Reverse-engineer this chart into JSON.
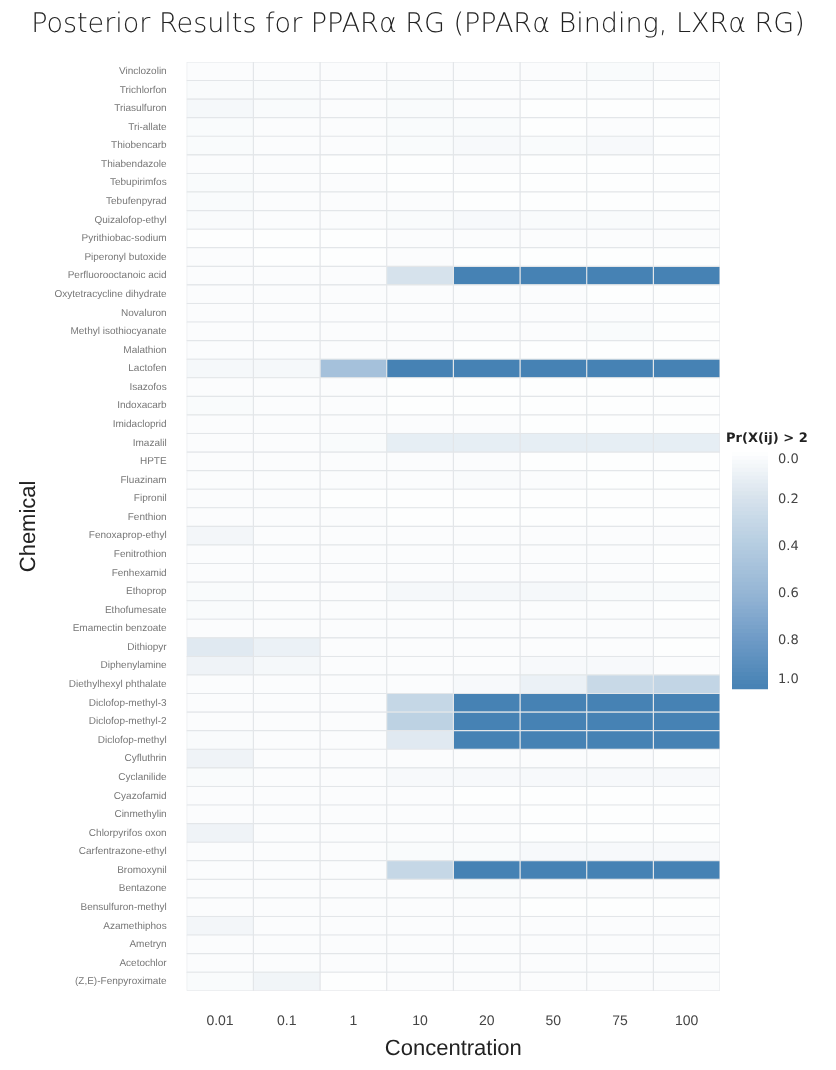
{
  "chart_data": {
    "type": "heatmap",
    "title": "Posterior Results for PPARα RG (PPARα Binding, LXRα RG)",
    "xlabel": "Concentration",
    "ylabel": "Chemical",
    "clabel": "Pr(X(ij) > 2",
    "categories": [
      "0.01",
      "0.1",
      "1",
      "10",
      "20",
      "50",
      "75",
      "100"
    ],
    "y_categories": [
      "Vinclozolin",
      "Trichlorfon",
      "Triasulfuron",
      "Tri-allate",
      "Thiobencarb",
      "Thiabendazole",
      "Tebupirimfos",
      "Tebufenpyrad",
      "Quizalofop-ethyl",
      "Pyrithiobac-sodium",
      "Piperonyl butoxide",
      "Perfluorooctanoic acid",
      "Oxytetracycline dihydrate",
      "Novaluron",
      "Methyl isothiocyanate",
      "Malathion",
      "Lactofen",
      "Isazofos",
      "Indoxacarb",
      "Imidacloprid",
      "Imazalil",
      "HPTE",
      "Fluazinam",
      "Fipronil",
      "Fenthion",
      "Fenoxaprop-ethyl",
      "Fenitrothion",
      "Fenhexamid",
      "Ethoprop",
      "Ethofumesate",
      "Emamectin benzoate",
      "Dithiopyr",
      "Diphenylamine",
      "Diethylhexyl phthalate",
      "Diclofop-methyl-3",
      "Diclofop-methyl-2",
      "Diclofop-methyl",
      "Cyfluthrin",
      "Cyclanilide",
      "Cyazofamid",
      "Cinmethylin",
      "Chlorpyrifos oxon",
      "Carfentrazone-ethyl",
      "Bromoxynil",
      "Bentazone",
      "Bensulfuron-methyl",
      "Azamethiphos",
      "Ametryn",
      "Acetochlor",
      "(Z,E)-Fenpyroximate"
    ],
    "cells": [
      [
        0.02,
        0.02,
        0.02,
        0.02,
        0.02,
        0.02,
        0.03,
        0.02
      ],
      [
        0.03,
        0.03,
        0.02,
        0.03,
        0.02,
        0.02,
        0.02,
        0.01
      ],
      [
        0.05,
        0.03,
        0.02,
        0.03,
        0.02,
        0.01,
        0.01,
        0.01
      ],
      [
        0.03,
        0.02,
        0.02,
        0.03,
        0.03,
        0.01,
        0.02,
        0.01
      ],
      [
        0.03,
        0.02,
        0.02,
        0.03,
        0.04,
        0.03,
        0.04,
        0.01
      ],
      [
        0.02,
        0.02,
        0.01,
        0.01,
        0.02,
        0.01,
        0.01,
        0.01
      ],
      [
        0.03,
        0.02,
        0.02,
        0.01,
        0.01,
        0.01,
        0.01,
        0.01
      ],
      [
        0.03,
        0.02,
        0.02,
        0.02,
        0.01,
        0.01,
        0.01,
        0.01
      ],
      [
        0.03,
        0.02,
        0.02,
        0.03,
        0.04,
        0.03,
        0.03,
        0.02
      ],
      [
        0.01,
        0.01,
        0.01,
        0.02,
        0.02,
        0.02,
        0.02,
        0.02
      ],
      [
        0.02,
        0.01,
        0.01,
        0.02,
        0.01,
        0.01,
        0.01,
        0.01
      ],
      [
        0.02,
        0.02,
        0.02,
        0.2,
        1.0,
        1.0,
        1.0,
        1.0
      ],
      [
        0.02,
        0.02,
        0.02,
        0.02,
        0.02,
        0.02,
        0.01,
        0.01
      ],
      [
        0.02,
        0.02,
        0.02,
        0.02,
        0.02,
        0.02,
        0.02,
        0.01
      ],
      [
        0.02,
        0.02,
        0.02,
        0.02,
        0.02,
        0.02,
        0.03,
        0.01
      ],
      [
        0.02,
        0.02,
        0.02,
        0.02,
        0.01,
        0.01,
        0.01,
        0.01
      ],
      [
        0.05,
        0.05,
        0.5,
        1.0,
        1.0,
        1.0,
        1.0,
        1.0
      ],
      [
        0.02,
        0.02,
        0.02,
        0.01,
        0.01,
        0.01,
        0.01,
        0.01
      ],
      [
        0.03,
        0.02,
        0.02,
        0.01,
        0.01,
        0.01,
        0.01,
        0.01
      ],
      [
        0.02,
        0.02,
        0.02,
        0.02,
        0.02,
        0.01,
        0.01,
        0.01
      ],
      [
        0.02,
        0.02,
        0.03,
        0.12,
        0.12,
        0.12,
        0.12,
        0.12
      ],
      [
        0.02,
        0.02,
        0.02,
        0.02,
        0.02,
        0.01,
        0.01,
        0.01
      ],
      [
        0.02,
        0.02,
        0.02,
        0.02,
        0.03,
        0.02,
        0.01,
        0.01
      ],
      [
        0.02,
        0.02,
        0.01,
        0.01,
        0.01,
        0.01,
        0.01,
        0.01
      ],
      [
        0.02,
        0.02,
        0.02,
        0.01,
        0.01,
        0.01,
        0.01,
        0.01
      ],
      [
        0.06,
        0.02,
        0.02,
        0.02,
        0.02,
        0.02,
        0.02,
        0.02
      ],
      [
        0.02,
        0.02,
        0.02,
        0.02,
        0.02,
        0.02,
        0.02,
        0.01
      ],
      [
        0.02,
        0.02,
        0.02,
        0.02,
        0.02,
        0.02,
        0.02,
        0.01
      ],
      [
        0.03,
        0.02,
        0.02,
        0.05,
        0.05,
        0.05,
        0.03,
        0.03
      ],
      [
        0.03,
        0.02,
        0.02,
        0.02,
        0.02,
        0.02,
        0.02,
        0.01
      ],
      [
        0.02,
        0.02,
        0.02,
        0.02,
        0.02,
        0.02,
        0.02,
        0.02
      ],
      [
        0.15,
        0.1,
        0.02,
        0.02,
        0.02,
        0.02,
        0.02,
        0.01
      ],
      [
        0.08,
        0.05,
        0.02,
        0.02,
        0.02,
        0.04,
        0.04,
        0.02
      ],
      [
        0.02,
        0.02,
        0.02,
        0.02,
        0.04,
        0.1,
        0.28,
        0.32
      ],
      [
        0.02,
        0.02,
        0.02,
        0.3,
        1.0,
        1.0,
        1.0,
        1.0
      ],
      [
        0.02,
        0.02,
        0.02,
        0.35,
        1.0,
        1.0,
        1.0,
        1.0
      ],
      [
        0.03,
        0.02,
        0.02,
        0.15,
        1.0,
        1.0,
        1.0,
        1.0
      ],
      [
        0.08,
        0.02,
        0.02,
        0.02,
        0.02,
        0.02,
        0.02,
        0.01
      ],
      [
        0.03,
        0.02,
        0.02,
        0.04,
        0.04,
        0.04,
        0.04,
        0.04
      ],
      [
        0.02,
        0.02,
        0.02,
        0.02,
        0.01,
        0.01,
        0.01,
        0.01
      ],
      [
        0.02,
        0.02,
        0.02,
        0.02,
        0.02,
        0.01,
        0.01,
        0.01
      ],
      [
        0.08,
        0.02,
        0.02,
        0.02,
        0.02,
        0.01,
        0.01,
        0.01
      ],
      [
        0.02,
        0.02,
        0.02,
        0.03,
        0.03,
        0.04,
        0.04,
        0.04
      ],
      [
        0.02,
        0.02,
        0.02,
        0.3,
        1.0,
        1.0,
        1.0,
        1.0
      ],
      [
        0.02,
        0.02,
        0.02,
        0.02,
        0.03,
        0.02,
        0.02,
        0.02
      ],
      [
        0.02,
        0.02,
        0.02,
        0.02,
        0.02,
        0.01,
        0.01,
        0.01
      ],
      [
        0.06,
        0.02,
        0.02,
        0.02,
        0.02,
        0.02,
        0.02,
        0.02
      ],
      [
        0.02,
        0.02,
        0.02,
        0.02,
        0.02,
        0.02,
        0.02,
        0.02
      ],
      [
        0.02,
        0.02,
        0.02,
        0.02,
        0.02,
        0.02,
        0.02,
        0.02
      ],
      [
        0.03,
        0.07,
        0.01,
        0.02,
        0.02,
        0.02,
        0.02,
        0.02
      ]
    ],
    "clim": [
      0,
      1
    ],
    "cticks": [
      {
        "value": 0,
        "label": "0.0"
      },
      {
        "value": 0.2,
        "label": "0.2"
      },
      {
        "value": 0.4,
        "label": "0.4"
      },
      {
        "value": 0.6,
        "label": "0.6"
      },
      {
        "value": 0.8,
        "label": "0.8"
      },
      {
        "value": 1,
        "label": "1.0"
      }
    ]
  }
}
